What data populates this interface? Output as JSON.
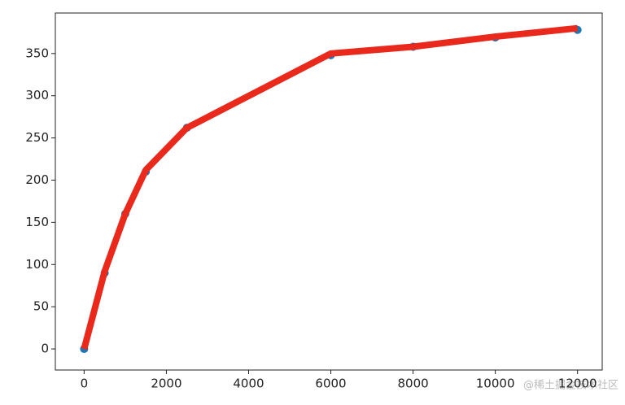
{
  "chart_data": {
    "type": "line",
    "x": [
      0,
      500,
      1000,
      1500,
      2500,
      6000,
      8000,
      10000,
      12000
    ],
    "series": [
      {
        "kind": "scatter",
        "color": "#1f77b4",
        "values": [
          0,
          90,
          160,
          210,
          262,
          348,
          358,
          369,
          378
        ]
      },
      {
        "kind": "line",
        "color": "#e8291c",
        "values": [
          0,
          92,
          160,
          212,
          262,
          350,
          358,
          370,
          380
        ]
      }
    ],
    "xlim": [
      -700,
      12600
    ],
    "ylim": [
      -25,
      398
    ],
    "xticks": [
      0,
      2000,
      4000,
      6000,
      8000,
      10000,
      12000
    ],
    "yticks": [
      0,
      50,
      100,
      150,
      200,
      250,
      300,
      350
    ],
    "grid": false
  },
  "watermark": "@稀土掘金技术社区"
}
